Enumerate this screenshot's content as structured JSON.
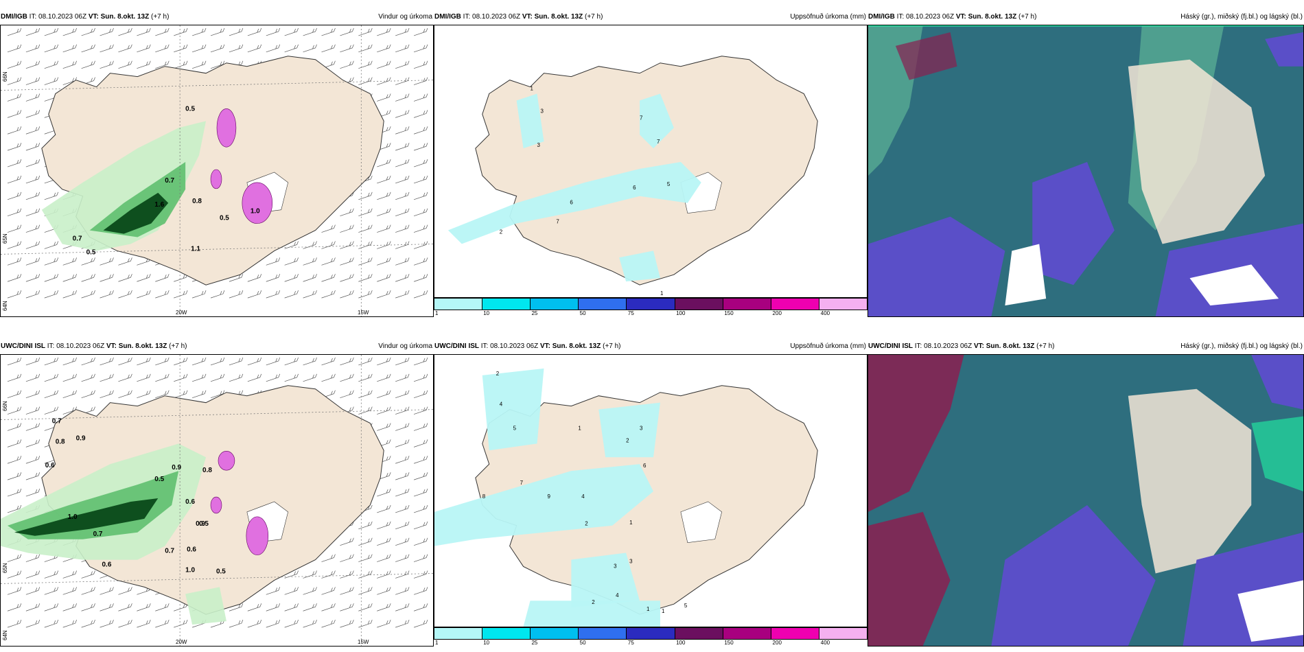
{
  "rows": [
    {
      "model": "DMI/IGB",
      "it_label": "IT:",
      "it_value": "08.10.2023 06Z",
      "vt_label": "VT:",
      "vt_value": "Sun. 8.okt. 13Z",
      "lead": "(+7 h)",
      "panels": [
        {
          "title": "Vindur og úrkoma",
          "labels": [
            "0.5",
            "0.7",
            "0.8",
            "1.6",
            "0.5",
            "0.7",
            "0.5",
            "1.0",
            "1.1"
          ]
        },
        {
          "title": "Uppsöfnuð úrkoma (mm)",
          "labels": [
            "1",
            "3",
            "3",
            "7",
            "7",
            "6",
            "6",
            "5",
            "2",
            "7",
            "1"
          ]
        },
        {
          "title": "Háský (gr.), miðský (fj.bl.) og lágský (bl.)"
        }
      ]
    },
    {
      "model": "UWC/DINI ISL",
      "it_label": "IT:",
      "it_value": "08.10.2023 06Z",
      "vt_label": "VT:",
      "vt_value": "Sun. 8.okt. 13Z",
      "lead": "(+7 h)",
      "panels": [
        {
          "title": "Vindur og úrkoma",
          "labels": [
            "0.7",
            "0.8",
            "0.9",
            "0.6",
            "0.5",
            "0.9",
            "0.8",
            "0.6",
            "0.7",
            "1.0",
            "0.5",
            "0.7",
            "0.6",
            "0.5",
            "1.0",
            "0.9",
            "0.6"
          ]
        },
        {
          "title": "Uppsöfnuð úrkoma (mm)",
          "labels": [
            "2",
            "4",
            "5",
            "7",
            "8",
            "9",
            "4",
            "1",
            "2",
            "3",
            "6",
            "2",
            "1",
            "3",
            "4",
            "2",
            "1",
            "5",
            "3",
            "1"
          ]
        },
        {
          "title": "Háský (gr.), miðský (fj.bl.) og lágský (bl.)"
        }
      ]
    }
  ],
  "axis": {
    "lon": [
      "20W",
      "15W"
    ],
    "lat": [
      "66N",
      "65N",
      "64N"
    ]
  },
  "colorbar": {
    "ticks": [
      "1",
      "10",
      "25",
      "50",
      "75",
      "100",
      "150",
      "200",
      "400"
    ],
    "colors": [
      "#b4f7f7",
      "#00e7ef",
      "#00bfef",
      "#2f6fef",
      "#2b2bbf",
      "#6b0f5f",
      "#a8007f",
      "#ef00b0",
      "#f5b0f0"
    ]
  },
  "colors": {
    "land": "#f3e6d6",
    "precip_light": "#c9f0c9",
    "precip_mid": "#5fbf6f",
    "precip_dark": "#0e4f1e",
    "snow": "#e070e0",
    "accum_precip": "#b8f6f6",
    "cloud_high": "#2e6e7e",
    "cloud_mid": "#4f9f8f",
    "cloud_low": "#5a4fc8",
    "cloud_edge": "#22e0a0"
  }
}
